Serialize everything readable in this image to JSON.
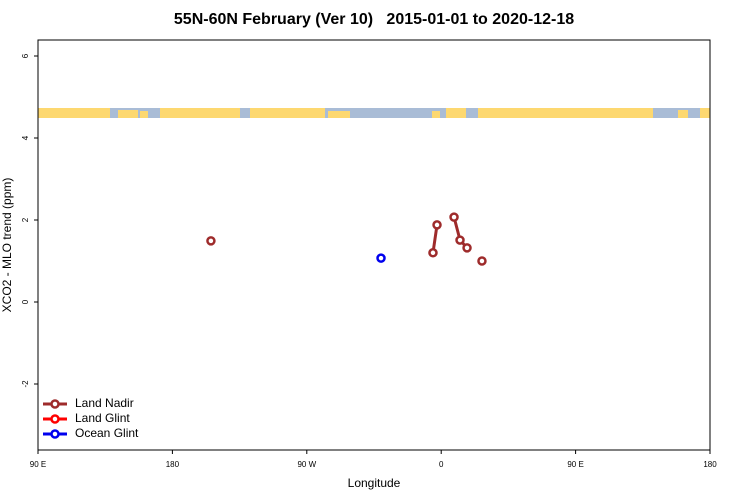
{
  "chart_data": {
    "type": "line",
    "title": "55N-60N February (Ver 10)   2015-01-01 to 2020-12-18",
    "x_label": "Longitude",
    "y_label": "XCO2 - MLO trend (ppm)",
    "xlim": [
      90,
      540
    ],
    "xticks": [
      {
        "value": 90,
        "label": "90 E"
      },
      {
        "value": 180,
        "label": "180"
      },
      {
        "value": 270,
        "label": "90 W"
      },
      {
        "value": 360,
        "label": "0"
      },
      {
        "value": 450,
        "label": "90 E"
      },
      {
        "value": 540,
        "label": "180"
      }
    ],
    "ylim": [
      -3.61,
      6.39
    ],
    "yticks": [
      -2,
      0,
      2,
      4,
      6
    ],
    "legend": "bottom-left",
    "series": [
      {
        "name": "Land Nadir",
        "color": "#9e2b2b",
        "x": [
          205.8,
          null,
          354.5,
          357.2,
          null,
          368.6,
          372.6,
          377.3,
          null,
          387.3
        ],
        "values": [
          1.49,
          null,
          1.2,
          1.88,
          null,
          2.07,
          1.51,
          1.32,
          null,
          1.0
        ]
      },
      {
        "name": "Land Glint",
        "color": "#ff0000",
        "x": [],
        "values": []
      },
      {
        "name": "Ocean Glint",
        "color": "#0000ee",
        "x": [
          319.7
        ],
        "values": [
          1.07
        ]
      }
    ]
  }
}
